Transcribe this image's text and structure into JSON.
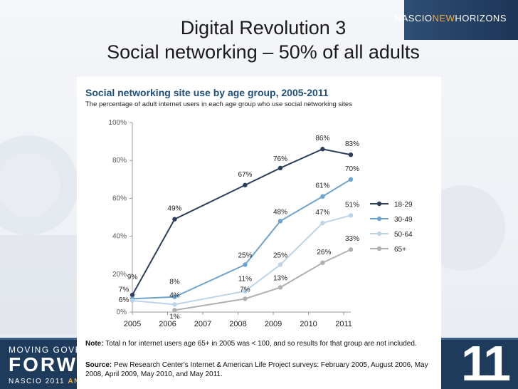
{
  "slide": {
    "title_line1": "Digital Revolution 3",
    "title_line2": "Social networking – 50% of all adults",
    "brand": {
      "part1": "NASCIO",
      "part2": "NEW",
      "part3": "HORIZONS"
    },
    "footer": {
      "line1": "MOVING GOVERN",
      "line2": "FORWA",
      "line3_main": "NASCIO 2011 ",
      "line3_accent": "ANNUA",
      "big_number": "11"
    },
    "colors": {
      "accent": "#f2a93b",
      "footer": "#1f3b5c"
    }
  },
  "chart_data": {
    "type": "line",
    "title": "Social networking site use by age group, 2005-2011",
    "subtitle": "The percentage of adult internet users in each age group who use social networking sites",
    "x_ticks": [
      "2005",
      "2006",
      "2007",
      "2008",
      "2009",
      "2010",
      "2011"
    ],
    "y_ticks": [
      "0%",
      "20%",
      "40%",
      "60%",
      "80%",
      "100%"
    ],
    "xlim": [
      2005,
      2011.2
    ],
    "ylim": [
      0,
      100
    ],
    "grid": false,
    "legend_position": "right",
    "series": [
      {
        "name": "18-29",
        "color": "#2b3f5c",
        "x": [
          2005,
          2006.2,
          2008.2,
          2009.2,
          2010.4,
          2011.2
        ],
        "y": [
          9,
          49,
          67,
          76,
          86,
          83
        ],
        "labels": [
          "9%",
          "49%",
          "67%",
          "76%",
          "86%",
          "83%"
        ]
      },
      {
        "name": "30-49",
        "color": "#6fa3cc",
        "x": [
          2005,
          2006.2,
          2008.2,
          2009.2,
          2010.4,
          2011.2
        ],
        "y": [
          7,
          8,
          25,
          48,
          61,
          70
        ],
        "labels": [
          "7%",
          "8%",
          "25%",
          "48%",
          "61%",
          "70%"
        ]
      },
      {
        "name": "50-64",
        "color": "#bcd3e8",
        "x": [
          2005,
          2006.2,
          2008.2,
          2009.2,
          2010.4,
          2011.2
        ],
        "y": [
          6,
          4,
          11,
          25,
          47,
          51
        ],
        "labels": [
          "6%",
          "4%",
          "11%",
          "25%",
          "47%",
          "51%"
        ]
      },
      {
        "name": "65+",
        "color": "#b0b0b0",
        "x": [
          2006.2,
          2008.2,
          2009.2,
          2010.4,
          2011.2
        ],
        "y": [
          1,
          7,
          13,
          26,
          33
        ],
        "labels": [
          "1%",
          "7%",
          "13%",
          "26%",
          "33%"
        ]
      }
    ],
    "note_label": "Note:",
    "note_text": " Total n for internet users age 65+ in 2005 was < 100, and so results for that group are not included.",
    "source_label": "Source:",
    "source_text": "  Pew Research Center's Internet & American Life Project surveys: February 2005, August 2006, May 2008, April 2009, May 2010, and May 2011."
  }
}
